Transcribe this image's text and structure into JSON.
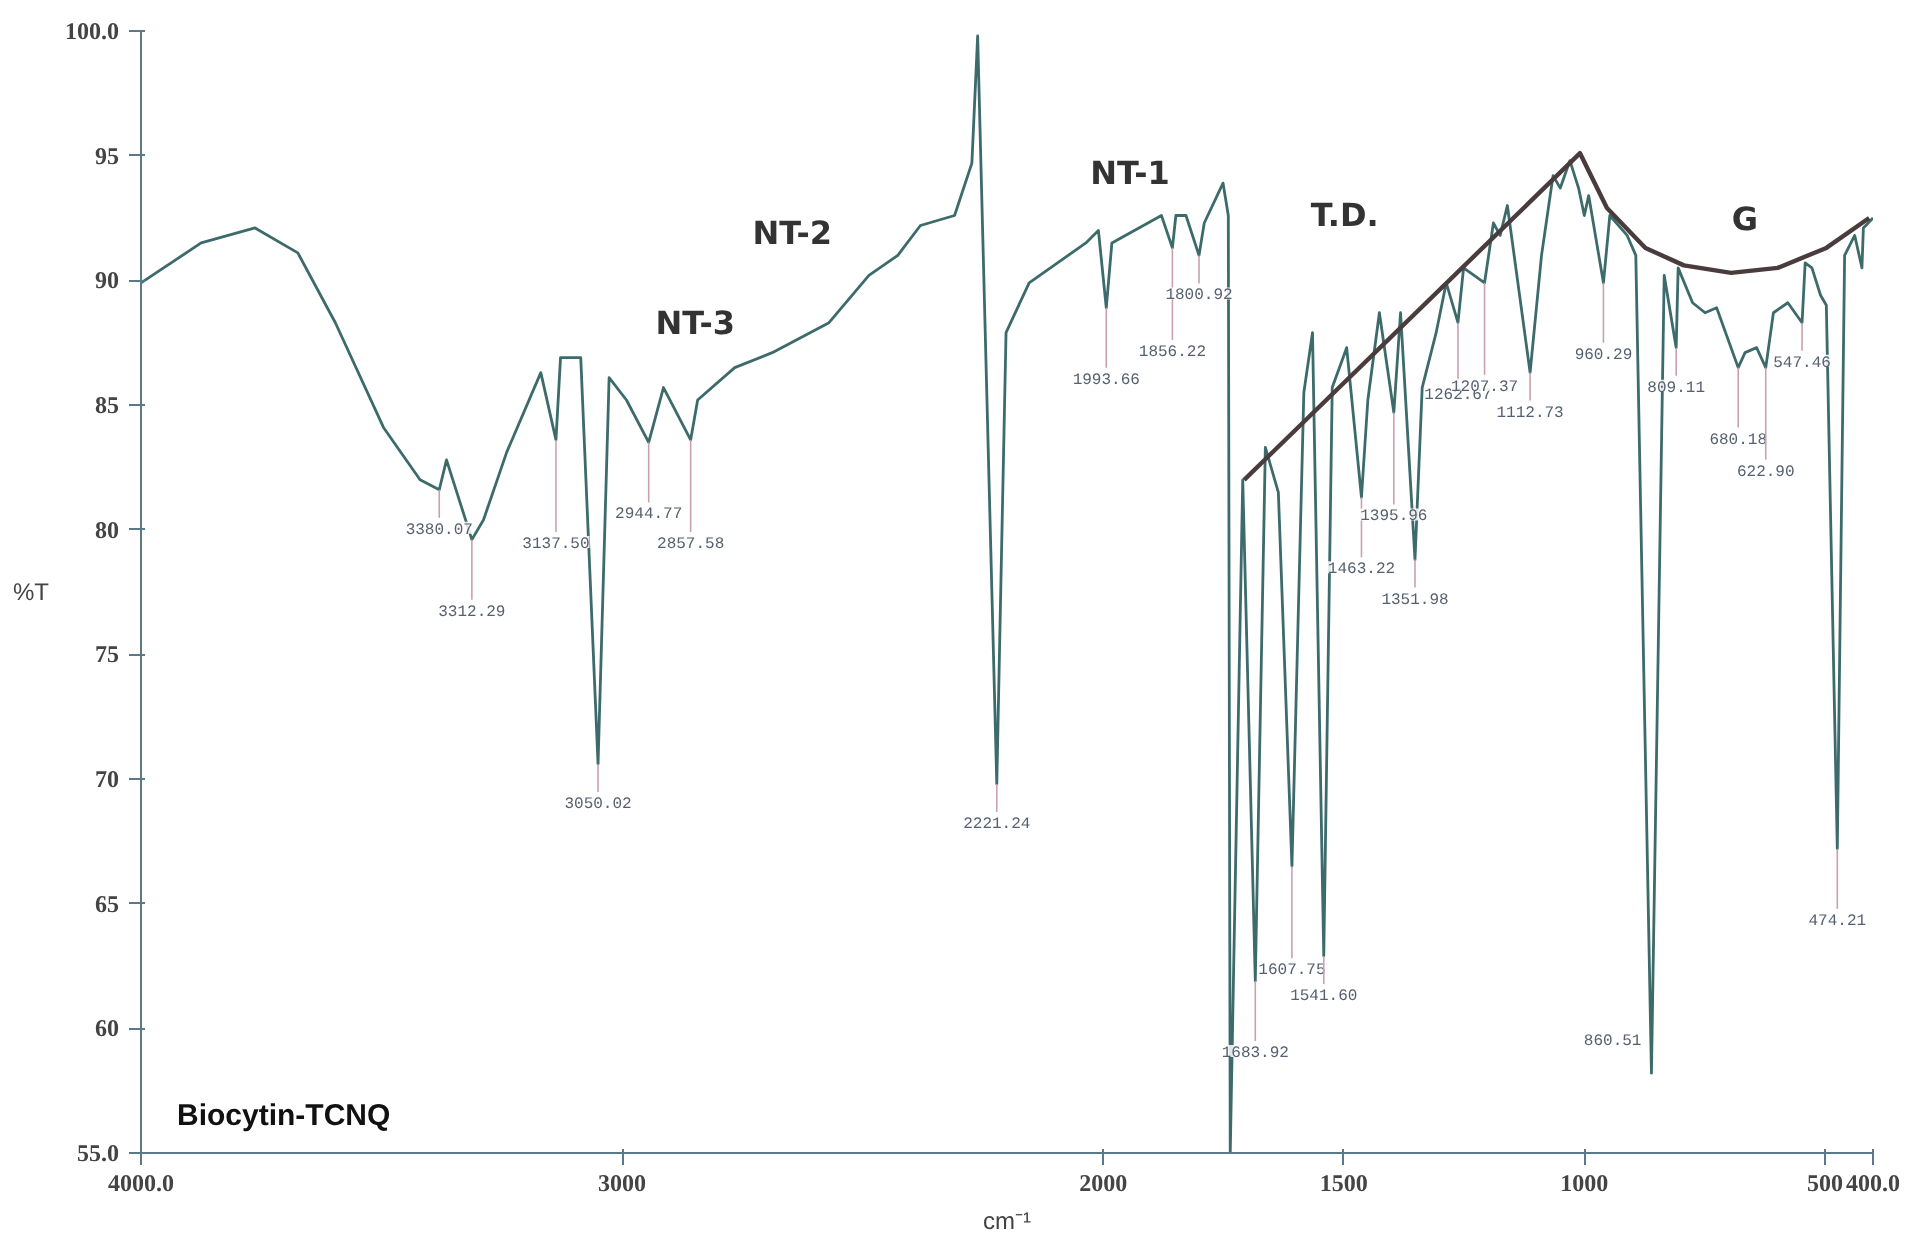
{
  "chart_data": {
    "type": "line",
    "xlabel": "cm⁻¹",
    "ylabel": "%T",
    "xlim": [
      4000,
      400
    ],
    "ylim": [
      55,
      100
    ],
    "xticks": [
      {
        "value": 4000,
        "label": "4000.0"
      },
      3000,
      2000,
      1500,
      1000,
      500,
      {
        "value": 400,
        "label": "400.0"
      }
    ],
    "yticks": [
      {
        "value": 55,
        "label": "55.0"
      },
      60,
      65,
      70,
      75,
      80,
      85,
      90,
      95,
      {
        "value": 100,
        "label": "100.0"
      }
    ],
    "grid": false,
    "series": [
      {
        "color": "#3d6b6b",
        "x": [
          4000,
          3875,
          3763,
          3674,
          3596,
          3496,
          3420,
          3380.07,
          3365,
          3312.29,
          3288,
          3240,
          3169,
          3137.5,
          3128,
          3086,
          3050.02,
          3027,
          2991,
          2944.77,
          2914,
          2857.58,
          2843,
          2766,
          2688,
          2570,
          2487,
          2427,
          2380,
          2309,
          2273,
          2261,
          2221.24,
          2202,
          2154,
          2036,
          2010,
          1993.66,
          1982,
          1879,
          1856.22,
          1849,
          1828,
          1800.92,
          1790,
          1751,
          1740,
          1736,
          1710,
          1683.92,
          1663,
          1636,
          1607.75,
          1583,
          1565,
          1541.6,
          1524,
          1494,
          1463.22,
          1450,
          1426,
          1395.96,
          1382,
          1351.98,
          1337,
          1308,
          1287,
          1262.67,
          1251,
          1207.37,
          1189,
          1175,
          1160,
          1112.73,
          1089,
          1065,
          1050,
          1030,
          1012,
          1000,
          991,
          960.29,
          947,
          911,
          893,
          860.51,
          834,
          809.11,
          805,
          775,
          749,
          725,
          680.18,
          666,
          642,
          622.9,
          607,
          577,
          547.46,
          541,
          527,
          509,
          497,
          474.21,
          459,
          438,
          423,
          420,
          400
        ],
        "values": [
          89.9,
          91.5,
          92.1,
          91.1,
          88.3,
          84.1,
          82.0,
          81.6,
          82.8,
          79.6,
          80.4,
          83.1,
          86.3,
          83.6,
          86.9,
          86.9,
          70.6,
          86.1,
          85.2,
          83.5,
          85.7,
          83.6,
          85.2,
          86.5,
          87.1,
          88.3,
          90.2,
          91.0,
          92.2,
          92.6,
          94.7,
          99.8,
          69.8,
          87.9,
          89.9,
          91.5,
          92.0,
          88.9,
          91.5,
          92.6,
          91.3,
          92.6,
          92.6,
          91.0,
          92.3,
          93.9,
          92.6,
          55.0,
          82.0,
          61.9,
          83.3,
          81.5,
          66.5,
          85.5,
          87.9,
          62.9,
          85.7,
          87.3,
          81.3,
          85.2,
          88.7,
          84.7,
          88.7,
          78.8,
          85.7,
          87.9,
          89.9,
          88.3,
          90.5,
          89.9,
          92.3,
          91.8,
          93.0,
          86.3,
          91.0,
          94.2,
          93.7,
          94.8,
          93.7,
          92.6,
          93.4,
          89.9,
          92.6,
          91.8,
          91.0,
          58.2,
          90.2,
          87.3,
          90.5,
          89.1,
          88.7,
          88.9,
          86.5,
          87.1,
          87.3,
          86.5,
          88.7,
          89.1,
          88.3,
          90.7,
          90.5,
          89.4,
          89.0,
          67.2,
          91.0,
          91.8,
          90.5,
          92.1,
          92.5
        ]
      },
      {
        "color": "#4a3c3c",
        "x": [
          1707,
          1009,
          953,
          873,
          793,
          695,
          598,
          497,
          408
        ],
        "values": [
          82.0,
          95.1,
          92.9,
          91.3,
          90.6,
          90.3,
          90.5,
          91.3,
          92.5
        ]
      }
    ],
    "annotations": [
      {
        "text": "3380.07",
        "x": 3380.07,
        "y": 81.6
      },
      {
        "text": "3312.29",
        "x": 3312.29,
        "y": 79.6
      },
      {
        "text": "3137.50",
        "x": 3137.5,
        "y": 83.6
      },
      {
        "text": "3050.02",
        "x": 3050.02,
        "y": 70.6
      },
      {
        "text": "2944.77",
        "x": 2944.77,
        "y": 83.5
      },
      {
        "text": "2857.58",
        "x": 2857.58,
        "y": 83.6
      },
      {
        "text": "2221.24",
        "x": 2221.24,
        "y": 69.8
      },
      {
        "text": "1993.66",
        "x": 1993.66,
        "y": 88.9
      },
      {
        "text": "1856.22",
        "x": 1856.22,
        "y": 91.3
      },
      {
        "text": "1800.92",
        "x": 1800.92,
        "y": 91.0
      },
      {
        "text": "1683.92",
        "x": 1683.92,
        "y": 61.9
      },
      {
        "text": "1607.75",
        "x": 1607.75,
        "y": 66.5
      },
      {
        "text": "1541.60",
        "x": 1541.6,
        "y": 62.9
      },
      {
        "text": "1463.22",
        "x": 1463.22,
        "y": 81.3
      },
      {
        "text": "1395.96",
        "x": 1395.96,
        "y": 84.7
      },
      {
        "text": "1351.98",
        "x": 1351.98,
        "y": 78.8
      },
      {
        "text": "1262.67",
        "x": 1262.67,
        "y": 88.3
      },
      {
        "text": "1207.37",
        "x": 1207.37,
        "y": 89.9
      },
      {
        "text": "1112.73",
        "x": 1112.73,
        "y": 86.3
      },
      {
        "text": "960.29",
        "x": 960.29,
        "y": 89.9
      },
      {
        "text": "860.51",
        "x": 860.51,
        "y": 58.2
      },
      {
        "text": "809.11",
        "x": 809.11,
        "y": 87.3
      },
      {
        "text": "680.18",
        "x": 680.18,
        "y": 86.5
      },
      {
        "text": "622.90",
        "x": 622.9,
        "y": 86.5
      },
      {
        "text": "547.46",
        "x": 547.46,
        "y": 88.3
      },
      {
        "text": "474.21",
        "x": 474.21,
        "y": 67.2
      },
      "NT-3",
      "NT-2",
      "NT-1",
      "T.D.",
      "G",
      "Biocytin-TCNQ"
    ]
  }
}
